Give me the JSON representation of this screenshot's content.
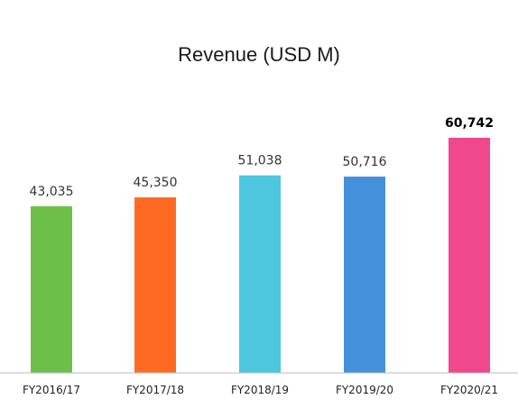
{
  "chart_data": {
    "type": "bar",
    "title": "Revenue (USD M)",
    "xlabel": "",
    "ylabel": "",
    "categories": [
      "FY2016/17",
      "FY2017/18",
      "FY2018/19",
      "FY2019/20",
      "FY2020/21"
    ],
    "values": [
      43035,
      45350,
      51038,
      50716,
      60742
    ],
    "value_labels": [
      "43,035",
      "45,350",
      "51,038",
      "50,716",
      "60,742"
    ],
    "highlighted_label_index": 4,
    "colors": [
      "#6cc04a",
      "#ff6a22",
      "#4cc7de",
      "#4590db",
      "#f0488a"
    ],
    "ylim": [
      0,
      60742
    ],
    "grid": false,
    "legend": "none"
  }
}
